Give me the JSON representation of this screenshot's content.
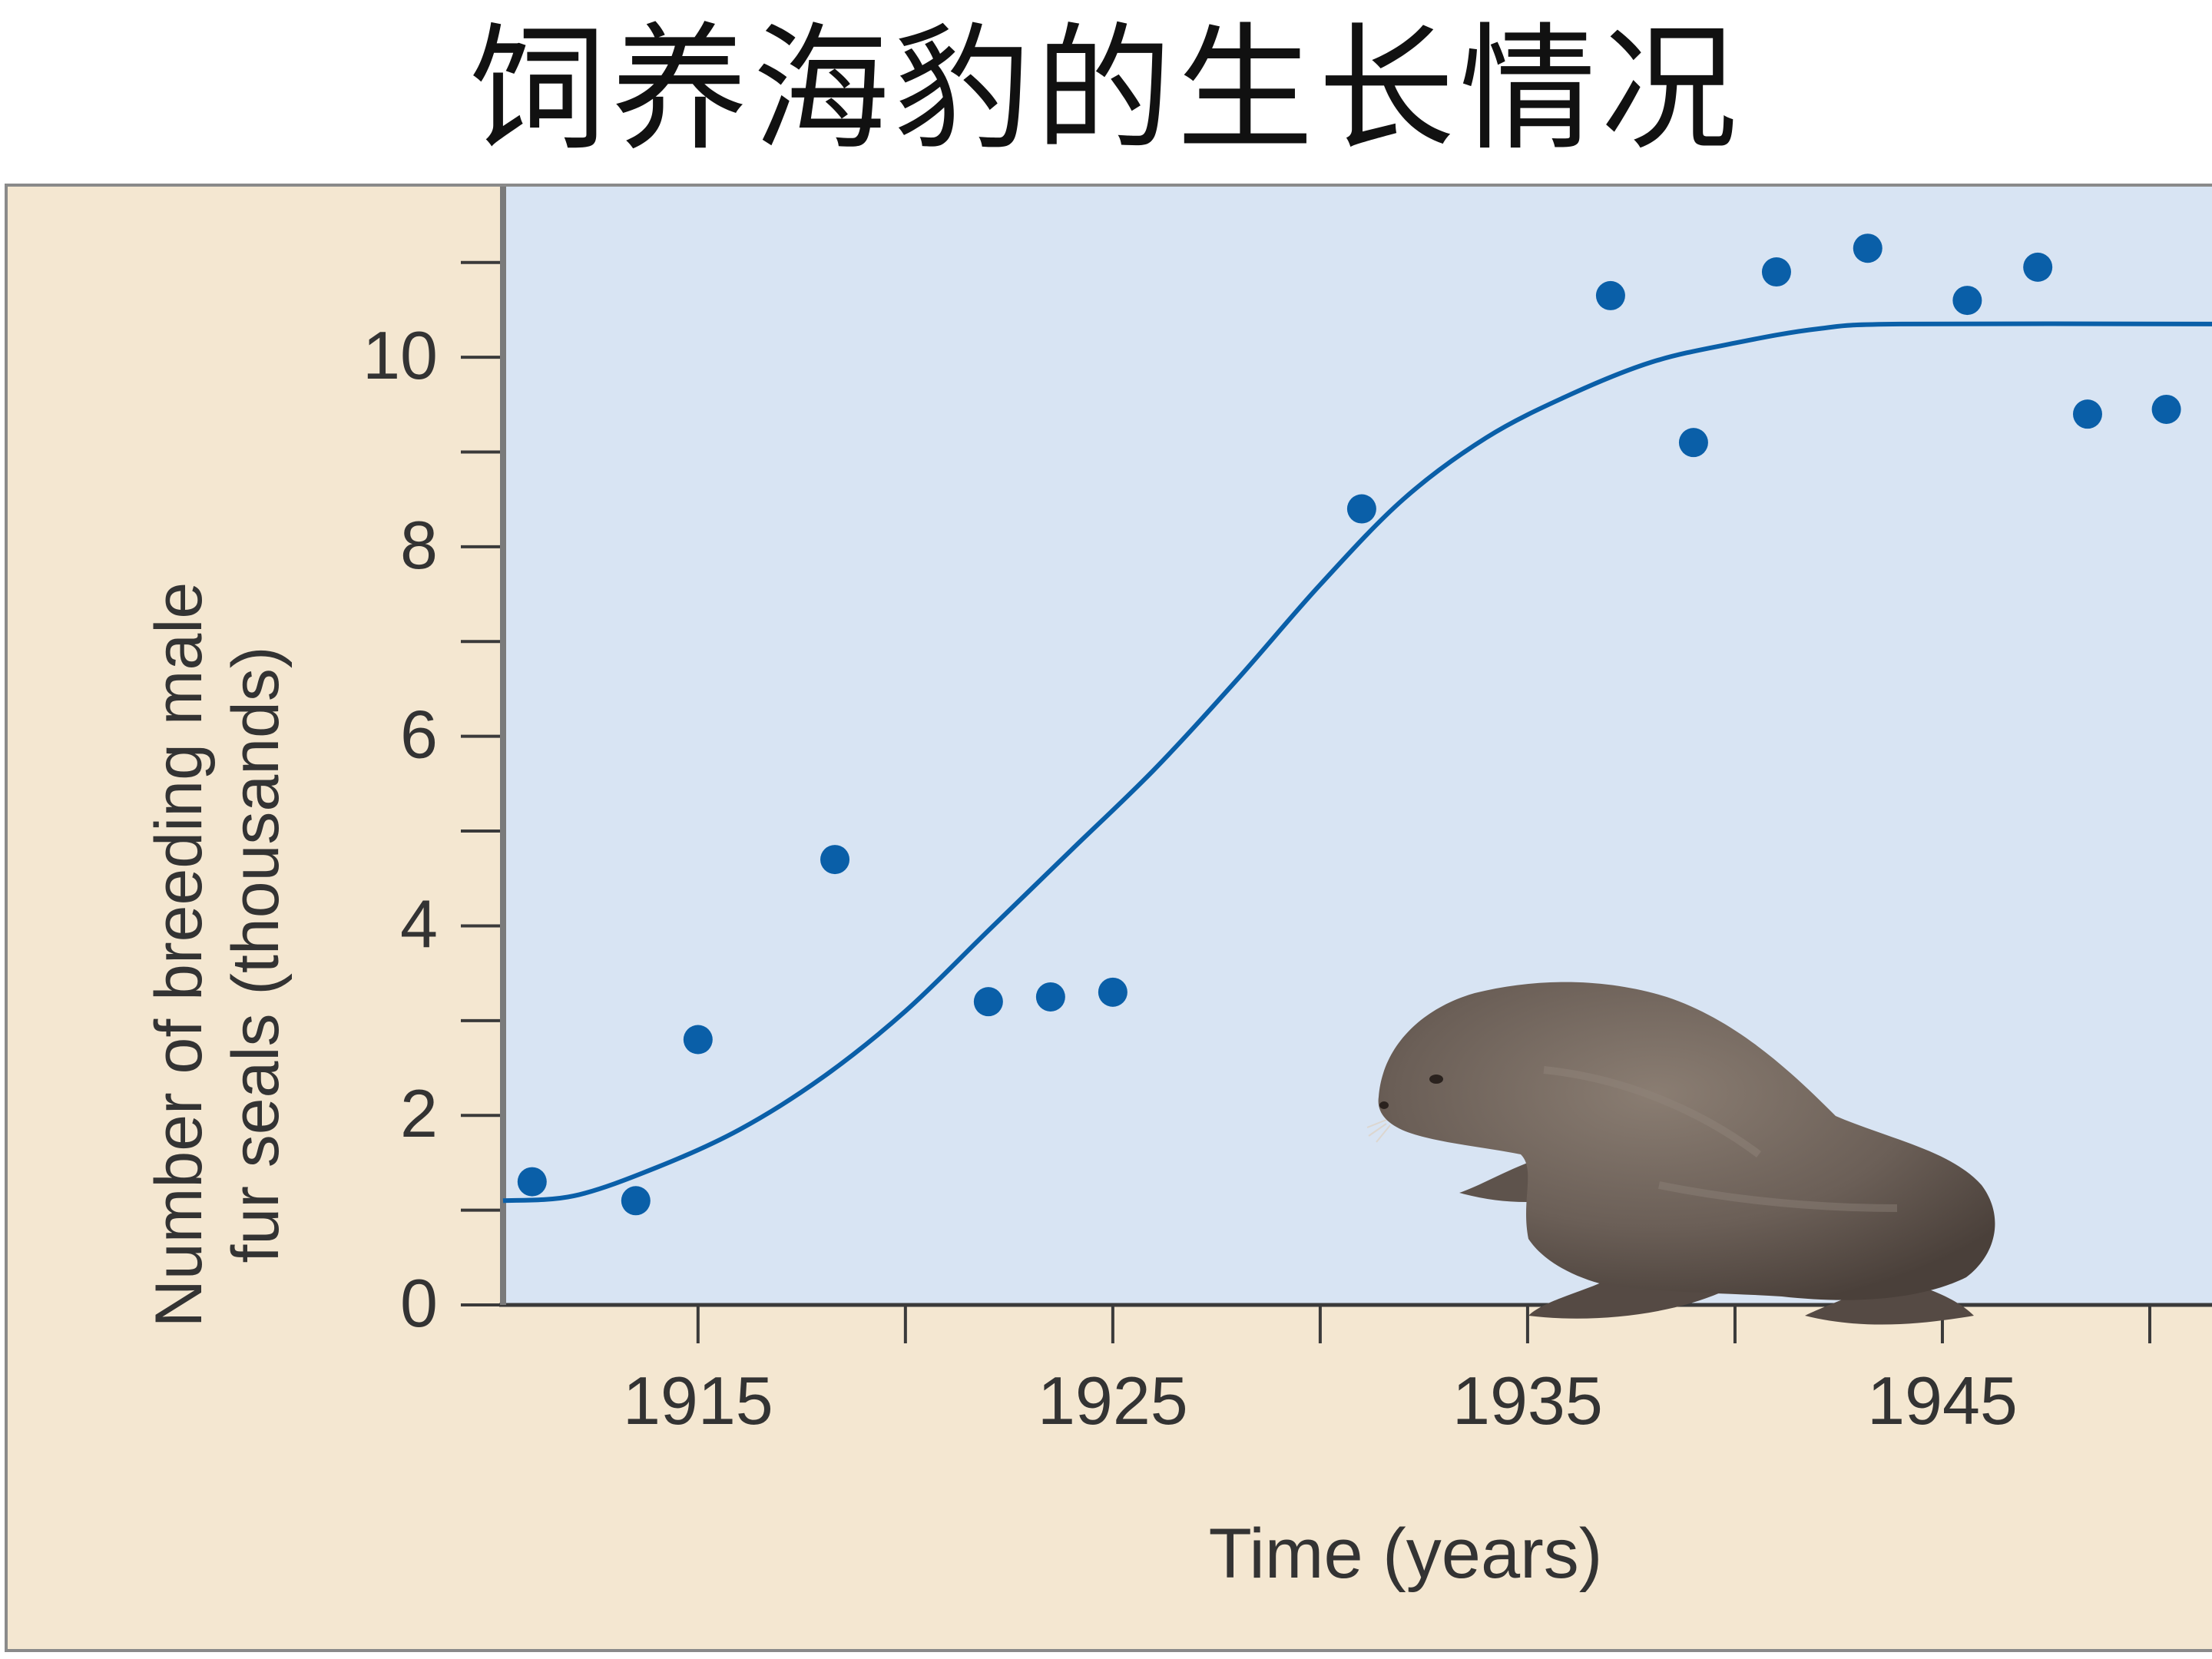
{
  "title": "饲养海豹的生长情况",
  "colors": {
    "panel_background": "#f4e7d1",
    "plot_background": "#d8e4f3",
    "series": "#0a5fa8",
    "axis": "#3a3a3a",
    "text": "#333333"
  },
  "illustration": "fur-seal",
  "chart_data": {
    "type": "scatter",
    "xlabel": "Time (years)",
    "ylabel_lines": [
      "Number of breeding male",
      "fur seals (thousands)"
    ],
    "xlim": [
      1910.3,
      1951.5
    ],
    "ylim": [
      0,
      11.8
    ],
    "x_ticks": [
      1915,
      1925,
      1935,
      1945
    ],
    "x_minor_ticks": [
      1920,
      1930,
      1940,
      1950
    ],
    "y_ticks": [
      0,
      2,
      4,
      6,
      8,
      10
    ],
    "y_minor_ticks": [
      1,
      3,
      5,
      7,
      9,
      11
    ],
    "grid": false,
    "series": [
      {
        "points": [
          {
            "x": 1911,
            "y": 1.3
          },
          {
            "x": 1913.5,
            "y": 1.1
          },
          {
            "x": 1915,
            "y": 2.8
          },
          {
            "x": 1918.3,
            "y": 4.7
          },
          {
            "x": 1922,
            "y": 3.2
          },
          {
            "x": 1923.5,
            "y": 3.25
          },
          {
            "x": 1925,
            "y": 3.3
          },
          {
            "x": 1931,
            "y": 8.4
          },
          {
            "x": 1937,
            "y": 10.65
          },
          {
            "x": 1939,
            "y": 9.1
          },
          {
            "x": 1941,
            "y": 10.9
          },
          {
            "x": 1943.2,
            "y": 11.15
          },
          {
            "x": 1945.6,
            "y": 10.6
          },
          {
            "x": 1947.3,
            "y": 10.95
          },
          {
            "x": 1948.5,
            "y": 9.4
          },
          {
            "x": 1950.4,
            "y": 9.45
          }
        ]
      }
    ],
    "trend_curve": {
      "type": "logistic",
      "points": [
        {
          "x": 1910.3,
          "y": 1.1
        },
        {
          "x": 1912,
          "y": 1.15
        },
        {
          "x": 1914,
          "y": 1.45
        },
        {
          "x": 1916,
          "y": 1.85
        },
        {
          "x": 1918,
          "y": 2.4
        },
        {
          "x": 1920,
          "y": 3.1
        },
        {
          "x": 1922,
          "y": 3.95
        },
        {
          "x": 1924,
          "y": 4.8
        },
        {
          "x": 1926,
          "y": 5.65
        },
        {
          "x": 1928,
          "y": 6.6
        },
        {
          "x": 1930,
          "y": 7.6
        },
        {
          "x": 1932,
          "y": 8.5
        },
        {
          "x": 1934,
          "y": 9.15
        },
        {
          "x": 1936,
          "y": 9.6
        },
        {
          "x": 1938,
          "y": 9.95
        },
        {
          "x": 1940,
          "y": 10.15
        },
        {
          "x": 1942,
          "y": 10.3
        },
        {
          "x": 1944,
          "y": 10.35
        },
        {
          "x": 1951.5,
          "y": 10.35
        }
      ]
    }
  }
}
